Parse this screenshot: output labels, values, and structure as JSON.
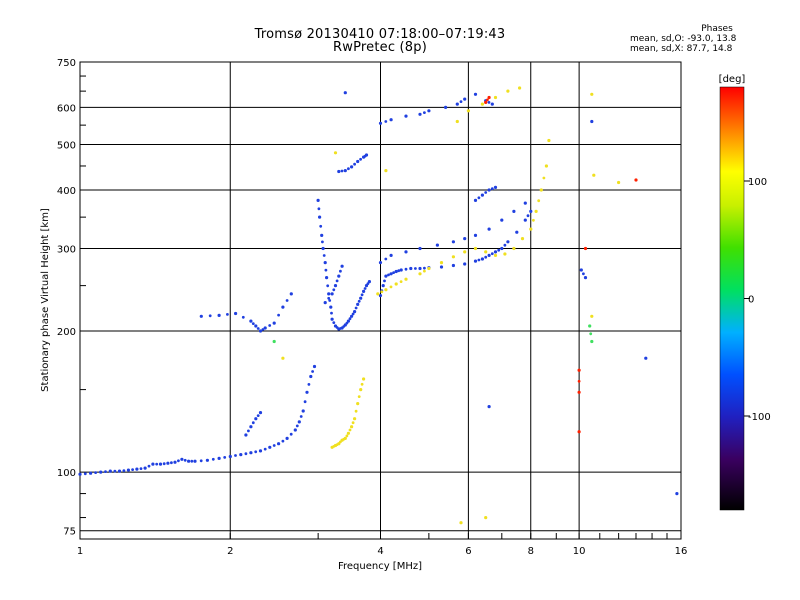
{
  "header": {
    "title_line1": "Tromsø 20130410 07:18:00–07:19:43",
    "title_line2": "RwPretec (8p)"
  },
  "phases_info": {
    "title": "Phases",
    "line_o": "mean, sd,O: -93.0, 13.8",
    "line_x": "mean, sd,X:  87.7, 14.8"
  },
  "colorbar": {
    "unit": "deg",
    "tick_labels": [
      "100",
      "0",
      "-100"
    ],
    "tick_values": [
      100,
      0,
      -100
    ],
    "range": [
      -180,
      180
    ]
  },
  "colors": {
    "o_mode": "#2040e0",
    "x_mode": "#f0e020",
    "grid": "#000000"
  },
  "chart_data": {
    "type": "scatter",
    "title": "Tromsø 20130410 07:18:00–07:19:43",
    "subtitle": "RwPretec (8p)",
    "xlabel": "Frequency [MHz]",
    "ylabel": "Stationary phase Virtual Height [km]",
    "xscale": "log",
    "yscale": "log",
    "xlim": [
      1,
      16
    ],
    "ylim": [
      72,
      750
    ],
    "x_ticks": [
      1,
      2,
      4,
      6,
      8,
      10,
      16
    ],
    "x_tick_labels": [
      "1",
      "2",
      "4",
      "6",
      "8",
      "10",
      "16"
    ],
    "y_ticks": [
      75,
      100,
      200,
      300,
      400,
      500,
      600,
      750
    ],
    "y_tick_labels": [
      "75",
      "100",
      "200",
      "300",
      "400",
      "500",
      "600",
      "750"
    ],
    "grid": true,
    "series": [
      {
        "color_phase_deg": -100,
        "points": [
          [
            1.0,
            99
          ],
          [
            1.05,
            99.5
          ],
          [
            1.1,
            100
          ],
          [
            1.15,
            100.5
          ],
          [
            1.2,
            100.5
          ],
          [
            1.25,
            101
          ],
          [
            1.3,
            101.5
          ],
          [
            1.35,
            102
          ],
          [
            1.4,
            104
          ],
          [
            1.45,
            104
          ],
          [
            1.5,
            104.5
          ],
          [
            1.55,
            105
          ],
          [
            1.6,
            106.5
          ],
          [
            1.65,
            105.5
          ],
          [
            1.7,
            105.5
          ],
          [
            1.8,
            106
          ],
          [
            1.9,
            107
          ],
          [
            2.0,
            108
          ],
          [
            2.1,
            109
          ],
          [
            2.2,
            110
          ],
          [
            2.3,
            111
          ],
          [
            2.4,
            113
          ],
          [
            2.5,
            115
          ],
          [
            2.6,
            118
          ],
          [
            2.7,
            123
          ],
          [
            2.75,
            128
          ],
          [
            2.8,
            135
          ],
          [
            2.85,
            148
          ],
          [
            2.9,
            160
          ],
          [
            2.95,
            168
          ],
          [
            2.15,
            120
          ],
          [
            2.2,
            125
          ],
          [
            2.25,
            130
          ],
          [
            2.3,
            134
          ],
          [
            1.75,
            215
          ],
          [
            1.9,
            216
          ],
          [
            2.05,
            218
          ],
          [
            2.2,
            210
          ],
          [
            2.25,
            205
          ],
          [
            2.3,
            200
          ],
          [
            2.35,
            203
          ],
          [
            2.45,
            208
          ],
          [
            2.55,
            225
          ],
          [
            2.65,
            240
          ],
          [
            3.0,
            380
          ],
          [
            3.02,
            350
          ],
          [
            3.05,
            320
          ],
          [
            3.07,
            300
          ],
          [
            3.1,
            280
          ],
          [
            3.12,
            260
          ],
          [
            3.15,
            240
          ],
          [
            3.18,
            225
          ],
          [
            3.2,
            212
          ],
          [
            3.25,
            205
          ],
          [
            3.3,
            202
          ],
          [
            3.35,
            203
          ],
          [
            3.4,
            206
          ],
          [
            3.45,
            210
          ],
          [
            3.5,
            215
          ],
          [
            3.55,
            220
          ],
          [
            3.6,
            228
          ],
          [
            3.65,
            235
          ],
          [
            3.7,
            243
          ],
          [
            3.75,
            250
          ],
          [
            3.8,
            255
          ],
          [
            3.1,
            230
          ],
          [
            3.2,
            240
          ],
          [
            3.25,
            250
          ],
          [
            3.3,
            262
          ],
          [
            3.35,
            275
          ],
          [
            3.3,
            438
          ],
          [
            3.4,
            440
          ],
          [
            3.5,
            448
          ],
          [
            3.6,
            460
          ],
          [
            3.7,
            470
          ],
          [
            3.75,
            475
          ],
          [
            3.4,
            645
          ],
          [
            4.0,
            238
          ],
          [
            4.05,
            250
          ],
          [
            4.1,
            262
          ],
          [
            4.2,
            265
          ],
          [
            4.3,
            268
          ],
          [
            4.4,
            270
          ],
          [
            4.6,
            272
          ],
          [
            4.8,
            272
          ],
          [
            5.0,
            273
          ],
          [
            5.3,
            274
          ],
          [
            5.6,
            276
          ],
          [
            5.9,
            278
          ],
          [
            6.2,
            282
          ],
          [
            6.4,
            285
          ],
          [
            6.6,
            290
          ],
          [
            6.8,
            295
          ],
          [
            7.0,
            300
          ],
          [
            7.2,
            310
          ],
          [
            7.5,
            325
          ],
          [
            7.8,
            345
          ],
          [
            8.0,
            360
          ],
          [
            4.0,
            280
          ],
          [
            4.2,
            290
          ],
          [
            4.5,
            295
          ],
          [
            4.8,
            300
          ],
          [
            5.2,
            305
          ],
          [
            5.6,
            310
          ],
          [
            5.9,
            315
          ],
          [
            6.2,
            320
          ],
          [
            6.6,
            330
          ],
          [
            7.0,
            345
          ],
          [
            7.4,
            360
          ],
          [
            7.8,
            375
          ],
          [
            4.0,
            555
          ],
          [
            4.2,
            565
          ],
          [
            4.5,
            575
          ],
          [
            4.8,
            580
          ],
          [
            5.0,
            590
          ],
          [
            5.4,
            600
          ],
          [
            5.7,
            610
          ],
          [
            5.9,
            625
          ],
          [
            6.2,
            640
          ],
          [
            6.5,
            620
          ],
          [
            6.7,
            610
          ],
          [
            6.2,
            380
          ],
          [
            6.4,
            390
          ],
          [
            6.6,
            400
          ],
          [
            6.8,
            405
          ],
          [
            6.6,
            138
          ],
          [
            10.6,
            560
          ],
          [
            10.1,
            270
          ],
          [
            10.3,
            260
          ],
          [
            13.6,
            175
          ],
          [
            15.7,
            90
          ]
        ]
      },
      {
        "color_phase_deg": 95,
        "points": [
          [
            3.2,
            113
          ],
          [
            3.25,
            114
          ],
          [
            3.3,
            115
          ],
          [
            3.35,
            117
          ],
          [
            3.4,
            118
          ],
          [
            3.45,
            121
          ],
          [
            3.5,
            125
          ],
          [
            3.55,
            130
          ],
          [
            3.6,
            140
          ],
          [
            3.65,
            150
          ],
          [
            3.7,
            158
          ],
          [
            3.25,
            480
          ],
          [
            4.1,
            440
          ],
          [
            2.55,
            175
          ],
          [
            3.95,
            240
          ],
          [
            4.1,
            245
          ],
          [
            4.3,
            252
          ],
          [
            4.5,
            258
          ],
          [
            4.8,
            265
          ],
          [
            5.0,
            272
          ],
          [
            5.3,
            280
          ],
          [
            5.6,
            288
          ],
          [
            5.9,
            295
          ],
          [
            6.2,
            300
          ],
          [
            6.5,
            295
          ],
          [
            6.8,
            290
          ],
          [
            7.1,
            292
          ],
          [
            7.4,
            300
          ],
          [
            7.7,
            315
          ],
          [
            8.0,
            330
          ],
          [
            8.2,
            360
          ],
          [
            8.4,
            400
          ],
          [
            8.6,
            450
          ],
          [
            8.7,
            510
          ],
          [
            5.7,
            560
          ],
          [
            6.0,
            590
          ],
          [
            6.4,
            610
          ],
          [
            6.8,
            630
          ],
          [
            7.2,
            650
          ],
          [
            7.6,
            660
          ],
          [
            5.8,
            78
          ],
          [
            6.5,
            80
          ],
          [
            10.6,
            215
          ],
          [
            10.6,
            640
          ],
          [
            10.7,
            430
          ],
          [
            12.0,
            415
          ]
        ]
      },
      {
        "color_phase_deg": 170,
        "points": [
          [
            6.6,
            630
          ],
          [
            6.5,
            615
          ],
          [
            10.0,
            165
          ],
          [
            10.0,
            148
          ],
          [
            10.0,
            122
          ],
          [
            10.3,
            300
          ],
          [
            13.0,
            420
          ]
        ]
      },
      {
        "color_phase_deg": 45,
        "points": [
          [
            10.5,
            205
          ],
          [
            10.6,
            190
          ],
          [
            2.45,
            190
          ]
        ]
      }
    ]
  }
}
